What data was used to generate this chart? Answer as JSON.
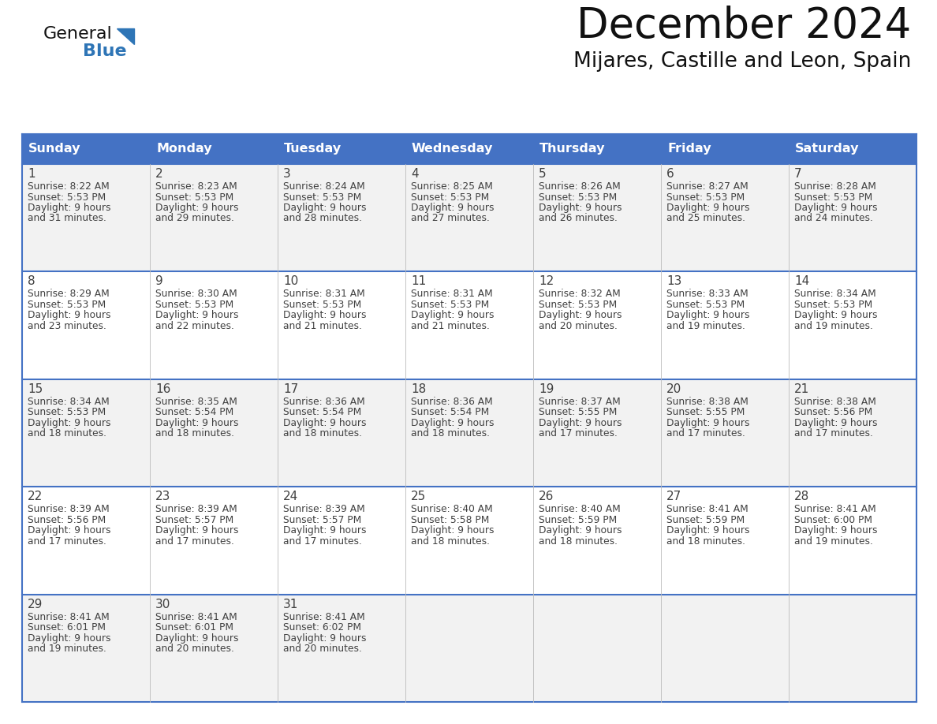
{
  "title": "December 2024",
  "subtitle": "Mijares, Castille and Leon, Spain",
  "header_color": "#4472C4",
  "header_text_color": "#FFFFFF",
  "days_of_week": [
    "Sunday",
    "Monday",
    "Tuesday",
    "Wednesday",
    "Thursday",
    "Friday",
    "Saturday"
  ],
  "row_colors": [
    "#F2F2F2",
    "#FFFFFF"
  ],
  "grid_line_color": "#4472C4",
  "text_color": "#404040",
  "calendar_data": [
    [
      {
        "day": "1",
        "sunrise": "8:22 AM",
        "sunset": "5:53 PM",
        "daylight_l1": "9 hours",
        "daylight_l2": "and 31 minutes."
      },
      {
        "day": "2",
        "sunrise": "8:23 AM",
        "sunset": "5:53 PM",
        "daylight_l1": "9 hours",
        "daylight_l2": "and 29 minutes."
      },
      {
        "day": "3",
        "sunrise": "8:24 AM",
        "sunset": "5:53 PM",
        "daylight_l1": "9 hours",
        "daylight_l2": "and 28 minutes."
      },
      {
        "day": "4",
        "sunrise": "8:25 AM",
        "sunset": "5:53 PM",
        "daylight_l1": "9 hours",
        "daylight_l2": "and 27 minutes."
      },
      {
        "day": "5",
        "sunrise": "8:26 AM",
        "sunset": "5:53 PM",
        "daylight_l1": "9 hours",
        "daylight_l2": "and 26 minutes."
      },
      {
        "day": "6",
        "sunrise": "8:27 AM",
        "sunset": "5:53 PM",
        "daylight_l1": "9 hours",
        "daylight_l2": "and 25 minutes."
      },
      {
        "day": "7",
        "sunrise": "8:28 AM",
        "sunset": "5:53 PM",
        "daylight_l1": "9 hours",
        "daylight_l2": "and 24 minutes."
      }
    ],
    [
      {
        "day": "8",
        "sunrise": "8:29 AM",
        "sunset": "5:53 PM",
        "daylight_l1": "9 hours",
        "daylight_l2": "and 23 minutes."
      },
      {
        "day": "9",
        "sunrise": "8:30 AM",
        "sunset": "5:53 PM",
        "daylight_l1": "9 hours",
        "daylight_l2": "and 22 minutes."
      },
      {
        "day": "10",
        "sunrise": "8:31 AM",
        "sunset": "5:53 PM",
        "daylight_l1": "9 hours",
        "daylight_l2": "and 21 minutes."
      },
      {
        "day": "11",
        "sunrise": "8:31 AM",
        "sunset": "5:53 PM",
        "daylight_l1": "9 hours",
        "daylight_l2": "and 21 minutes."
      },
      {
        "day": "12",
        "sunrise": "8:32 AM",
        "sunset": "5:53 PM",
        "daylight_l1": "9 hours",
        "daylight_l2": "and 20 minutes."
      },
      {
        "day": "13",
        "sunrise": "8:33 AM",
        "sunset": "5:53 PM",
        "daylight_l1": "9 hours",
        "daylight_l2": "and 19 minutes."
      },
      {
        "day": "14",
        "sunrise": "8:34 AM",
        "sunset": "5:53 PM",
        "daylight_l1": "9 hours",
        "daylight_l2": "and 19 minutes."
      }
    ],
    [
      {
        "day": "15",
        "sunrise": "8:34 AM",
        "sunset": "5:53 PM",
        "daylight_l1": "9 hours",
        "daylight_l2": "and 18 minutes."
      },
      {
        "day": "16",
        "sunrise": "8:35 AM",
        "sunset": "5:54 PM",
        "daylight_l1": "9 hours",
        "daylight_l2": "and 18 minutes."
      },
      {
        "day": "17",
        "sunrise": "8:36 AM",
        "sunset": "5:54 PM",
        "daylight_l1": "9 hours",
        "daylight_l2": "and 18 minutes."
      },
      {
        "day": "18",
        "sunrise": "8:36 AM",
        "sunset": "5:54 PM",
        "daylight_l1": "9 hours",
        "daylight_l2": "and 18 minutes."
      },
      {
        "day": "19",
        "sunrise": "8:37 AM",
        "sunset": "5:55 PM",
        "daylight_l1": "9 hours",
        "daylight_l2": "and 17 minutes."
      },
      {
        "day": "20",
        "sunrise": "8:38 AM",
        "sunset": "5:55 PM",
        "daylight_l1": "9 hours",
        "daylight_l2": "and 17 minutes."
      },
      {
        "day": "21",
        "sunrise": "8:38 AM",
        "sunset": "5:56 PM",
        "daylight_l1": "9 hours",
        "daylight_l2": "and 17 minutes."
      }
    ],
    [
      {
        "day": "22",
        "sunrise": "8:39 AM",
        "sunset": "5:56 PM",
        "daylight_l1": "9 hours",
        "daylight_l2": "and 17 minutes."
      },
      {
        "day": "23",
        "sunrise": "8:39 AM",
        "sunset": "5:57 PM",
        "daylight_l1": "9 hours",
        "daylight_l2": "and 17 minutes."
      },
      {
        "day": "24",
        "sunrise": "8:39 AM",
        "sunset": "5:57 PM",
        "daylight_l1": "9 hours",
        "daylight_l2": "and 17 minutes."
      },
      {
        "day": "25",
        "sunrise": "8:40 AM",
        "sunset": "5:58 PM",
        "daylight_l1": "9 hours",
        "daylight_l2": "and 18 minutes."
      },
      {
        "day": "26",
        "sunrise": "8:40 AM",
        "sunset": "5:59 PM",
        "daylight_l1": "9 hours",
        "daylight_l2": "and 18 minutes."
      },
      {
        "day": "27",
        "sunrise": "8:41 AM",
        "sunset": "5:59 PM",
        "daylight_l1": "9 hours",
        "daylight_l2": "and 18 minutes."
      },
      {
        "day": "28",
        "sunrise": "8:41 AM",
        "sunset": "6:00 PM",
        "daylight_l1": "9 hours",
        "daylight_l2": "and 19 minutes."
      }
    ],
    [
      {
        "day": "29",
        "sunrise": "8:41 AM",
        "sunset": "6:01 PM",
        "daylight_l1": "9 hours",
        "daylight_l2": "and 19 minutes."
      },
      {
        "day": "30",
        "sunrise": "8:41 AM",
        "sunset": "6:01 PM",
        "daylight_l1": "9 hours",
        "daylight_l2": "and 20 minutes."
      },
      {
        "day": "31",
        "sunrise": "8:41 AM",
        "sunset": "6:02 PM",
        "daylight_l1": "9 hours",
        "daylight_l2": "and 20 minutes."
      },
      null,
      null,
      null,
      null
    ]
  ]
}
